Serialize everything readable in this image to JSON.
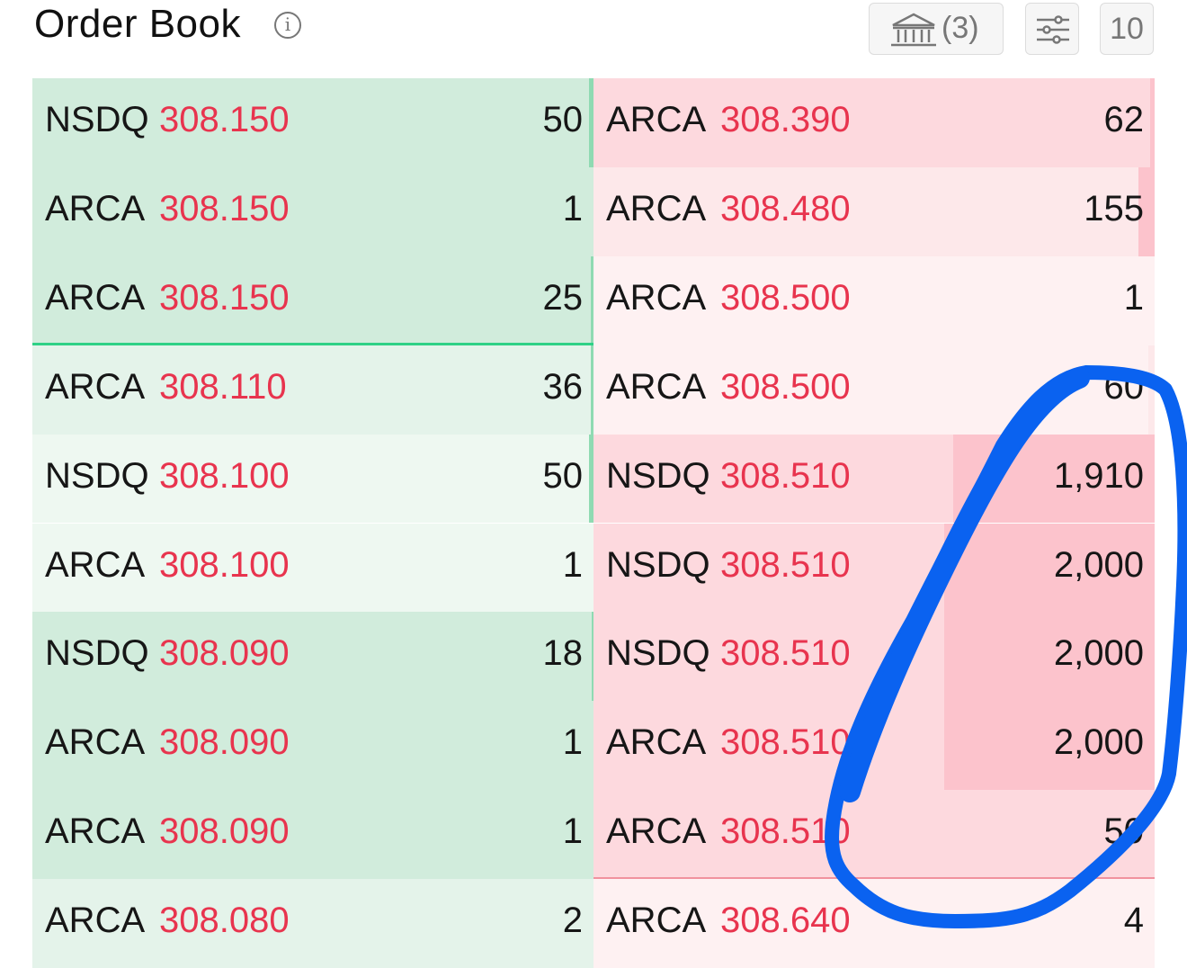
{
  "header": {
    "title": "Order Book",
    "info_icon": "info-circle-icon",
    "bank_button": {
      "icon": "bank-icon",
      "count": "(3)"
    },
    "filter_button": {
      "icon": "sliders-icon"
    },
    "depth_button": {
      "label": "10"
    }
  },
  "colors": {
    "bid_row": "#d1ecdc",
    "bid_row_light": "#e4f3ea",
    "bid_row_lighter": "#eef8f1",
    "bid_bar": "#8fdab2",
    "bid_divider": "#2fd186",
    "ask_row": "#fdd9de",
    "ask_row_light": "#fde8ea",
    "ask_row_lighter": "#fef1f2",
    "ask_bar": "#fcc3cc",
    "ask_divider": "#f1929e",
    "price_text": "#e8344e",
    "annotation_stroke": "#0a62f0"
  },
  "bids": [
    {
      "exchange": "NSDQ",
      "price": "308.150",
      "size": "50",
      "depth_level": 0.0
    },
    {
      "exchange": "ARCA",
      "price": "308.150",
      "size": "1",
      "depth_level": 0.0
    },
    {
      "exchange": "ARCA",
      "price": "308.150",
      "size": "25",
      "depth_level": 0.0
    },
    {
      "exchange": "ARCA",
      "price": "308.110",
      "size": "36",
      "depth_level": 0.0
    },
    {
      "exchange": "NSDQ",
      "price": "308.100",
      "size": "50",
      "depth_level": 0.0
    },
    {
      "exchange": "ARCA",
      "price": "308.100",
      "size": "1",
      "depth_level": 0.0
    },
    {
      "exchange": "NSDQ",
      "price": "308.090",
      "size": "18",
      "depth_level": 0.0
    },
    {
      "exchange": "ARCA",
      "price": "308.090",
      "size": "1",
      "depth_level": 0.0
    },
    {
      "exchange": "ARCA",
      "price": "308.090",
      "size": "1",
      "depth_level": 0.0
    },
    {
      "exchange": "ARCA",
      "price": "308.080",
      "size": "2",
      "depth_level": 0.0
    }
  ],
  "asks": [
    {
      "exchange": "ARCA",
      "price": "308.390",
      "size": "62"
    },
    {
      "exchange": "ARCA",
      "price": "308.480",
      "size": "155"
    },
    {
      "exchange": "ARCA",
      "price": "308.500",
      "size": "1"
    },
    {
      "exchange": "ARCA",
      "price": "308.500",
      "size": "60"
    },
    {
      "exchange": "NSDQ",
      "price": "308.510",
      "size": "1,910"
    },
    {
      "exchange": "NSDQ",
      "price": "308.510",
      "size": "2,000"
    },
    {
      "exchange": "NSDQ",
      "price": "308.510",
      "size": "2,000"
    },
    {
      "exchange": "ARCA",
      "price": "308.510",
      "size": "2,000"
    },
    {
      "exchange": "ARCA",
      "price": "308.510",
      "size": "50"
    },
    {
      "exchange": "ARCA",
      "price": "308.640",
      "size": "4"
    }
  ],
  "annotation": {
    "type": "hand-drawn-circle",
    "color": "#0a62f0"
  }
}
